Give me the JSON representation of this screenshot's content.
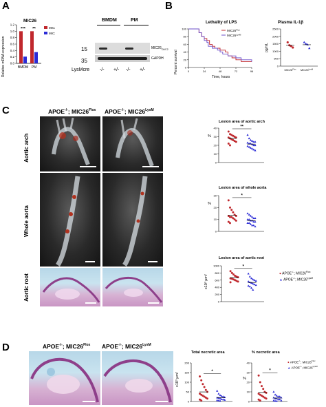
{
  "panels": {
    "A": {
      "letter": "A",
      "bar_chart": {
        "title": "MIC26",
        "ylabel": "Relative mRNA expression",
        "categories": [
          "BMDM",
          "PM"
        ],
        "legend": [
          {
            "name": "MIC26",
            "sup": "Flox",
            "color": "#c0282d"
          },
          {
            "name": "MIC26",
            "sup": "LysM",
            "color": "#2b2bd6"
          }
        ],
        "significance": [
          "***",
          "**"
        ],
        "ticks": [
          "0.0",
          "0.2",
          "0.4",
          "0.6",
          "0.8",
          "1.0",
          "1.2"
        ]
      },
      "blot": {
        "groups": [
          "BMDM",
          "PM"
        ],
        "markers": [
          "15",
          "35"
        ],
        "bands": [
          "MIC26",
          "GAPDH"
        ],
        "band_sub": "C6/C2",
        "row_label": "LysMcre",
        "lanes": [
          "-/-",
          "+/-",
          "-/-",
          "+/-"
        ]
      }
    },
    "B": {
      "letter": "B",
      "survival": {
        "title": "Lethality of LPS",
        "ylabel": "Percent survival",
        "xlabel": "Time, hours",
        "xticks": [
          "0",
          "24",
          "48",
          "72",
          "96"
        ],
        "yticks": [
          "0",
          "20",
          "40",
          "60",
          "80",
          "100"
        ],
        "legend": [
          {
            "name": "MIC26",
            "sup": "Flox",
            "color": "#c0282d"
          },
          {
            "name": "MIC26",
            "sup": "LysM",
            "color": "#6a4cc9"
          }
        ]
      },
      "il1b": {
        "title": "Plasma IL-1β",
        "ylabel": "pg/mL",
        "yticks": [
          "0",
          "500",
          "1000",
          "1500",
          "2000",
          "2500"
        ],
        "categories": [
          "MIC26Flox",
          "MIC26LysM"
        ]
      }
    },
    "C": {
      "letter": "C",
      "col_headers": [
        {
          "base": "APOE",
          "sup1": "-/-",
          "mid": "; MIC26",
          "sup2": "Flox"
        },
        {
          "base": "APOE",
          "sup1": "-/-",
          "mid": "; MIC26",
          "sup2": "LysM"
        }
      ],
      "row_labels": [
        "Aortic arch",
        "Whole aorta",
        "Aortic root"
      ],
      "plots": [
        {
          "title": "Lesion area of aortic arch",
          "ylabel": "%",
          "yticks": [
            "0",
            "10",
            "20",
            "30",
            "40"
          ],
          "sig": "**"
        },
        {
          "title": "Lesion area of whole aorta",
          "ylabel": "%",
          "yticks": [
            "0",
            "10",
            "20",
            "30"
          ],
          "sig": "*"
        },
        {
          "title": "Lesion area of aortic root",
          "ylabel": "x10³ μm²",
          "yticks": [
            "0",
            "200",
            "400",
            "600",
            "800",
            "1000"
          ],
          "sig": "*"
        }
      ],
      "legend": [
        {
          "base": "APOE",
          "sup1": "-/-",
          "mid": "; MIC26",
          "sup2": "Flox",
          "color": "#c0282d"
        },
        {
          "base": "APOE",
          "sup1": "-/-",
          "mid": "; MIC26",
          "sup2": "LysM",
          "color": "#2b2bd6"
        }
      ]
    },
    "D": {
      "letter": "D",
      "col_headers": [
        {
          "base": "APOE",
          "sup1": "-/-",
          "mid": "; MIC26",
          "sup2": "Flox"
        },
        {
          "base": "APOE",
          "sup1": "-/-",
          "mid": "; MIC26",
          "sup2": "LysM"
        }
      ],
      "plots": [
        {
          "title": "Total necrotic area",
          "ylabel": "x10³ μm²",
          "yticks": [
            "0",
            "50",
            "100",
            "150",
            "200"
          ],
          "sig": "*"
        },
        {
          "title": "% necrotic area",
          "ylabel": "%",
          "yticks": [
            "0",
            "10",
            "20",
            "30",
            "40"
          ],
          "sig": "*"
        }
      ],
      "legend": [
        {
          "base": "APOE",
          "sup1": "-/-",
          "mid": "; MIC26",
          "sup2": "Flox",
          "color": "#c0282d"
        },
        {
          "base": "APOE",
          "sup1": "-/-",
          "mid": "; MIC26",
          "sup2": "LysM",
          "color": "#2b2bd6"
        }
      ]
    }
  },
  "chart_data": [
    {
      "type": "bar",
      "title": "MIC26",
      "ylabel": "Relative mRNA expression",
      "categories": [
        "BMDM",
        "PM"
      ],
      "ylim": [
        0,
        1.2
      ],
      "series": [
        {
          "name": "MIC26Flox",
          "values": [
            1.0,
            1.0
          ]
        },
        {
          "name": "MIC26LysM",
          "values": [
            0.21,
            0.35
          ]
        }
      ]
    },
    {
      "type": "line",
      "title": "Lethality of LPS",
      "xlabel": "Time, hours",
      "ylabel": "Percent survival",
      "xlim": [
        0,
        96
      ],
      "ylim": [
        0,
        100
      ],
      "series": [
        {
          "name": "MIC26Flox",
          "x": [
            0,
            14,
            16,
            20,
            24,
            28,
            32,
            36,
            40,
            48,
            56,
            60,
            66,
            72,
            80,
            96
          ],
          "y": [
            100,
            100,
            90,
            80,
            75,
            70,
            60,
            55,
            50,
            45,
            40,
            30,
            25,
            20,
            15,
            15
          ]
        },
        {
          "name": "MIC26LysM",
          "x": [
            0,
            12,
            16,
            20,
            24,
            28,
            30,
            36,
            44,
            48,
            52,
            60,
            72,
            80,
            96
          ],
          "y": [
            100,
            100,
            90,
            80,
            70,
            65,
            55,
            50,
            45,
            40,
            35,
            30,
            25,
            20,
            15
          ]
        }
      ]
    },
    {
      "type": "scatter",
      "title": "Plasma IL-1β",
      "ylabel": "pg/mL",
      "categories": [
        "MIC26Flox",
        "MIC26LysM"
      ],
      "ylim": [
        0,
        2500
      ],
      "series": [
        {
          "name": "MIC26Flox",
          "values": [
            1600,
            1400,
            1350,
            1250
          ]
        },
        {
          "name": "MIC26LysM",
          "values": [
            1600,
            1500,
            1450,
            1200
          ]
        }
      ]
    },
    {
      "type": "scatter",
      "title": "Lesion area of aortic arch",
      "ylabel": "%",
      "ylim": [
        0,
        40
      ],
      "series": [
        {
          "name": "APOE-/-; MIC26Flox",
          "values": [
            36,
            33,
            32,
            31,
            30,
            29,
            29,
            28,
            27,
            26,
            25,
            24,
            22,
            20
          ]
        },
        {
          "name": "APOE-/-; MIC26LysM",
          "values": [
            32,
            28,
            26,
            25,
            24,
            24,
            23,
            22,
            22,
            21,
            20,
            20,
            19,
            18,
            17,
            16,
            15,
            14
          ]
        }
      ]
    },
    {
      "type": "scatter",
      "title": "Lesion area of whole aorta",
      "ylabel": "%",
      "ylim": [
        0,
        30
      ],
      "series": [
        {
          "name": "APOE-/-; MIC26Flox",
          "values": [
            26,
            20,
            18,
            16,
            14,
            13,
            13,
            12,
            12,
            11,
            10,
            9,
            8,
            7
          ]
        },
        {
          "name": "APOE-/-; MIC26LysM",
          "values": [
            15,
            14,
            13,
            12,
            11,
            11,
            10,
            10,
            9,
            9,
            8,
            8,
            7,
            7,
            6,
            5,
            5,
            4
          ]
        }
      ]
    },
    {
      "type": "scatter",
      "title": "Lesion area of aortic root",
      "ylabel": "x10³ μm²",
      "ylim": [
        0,
        1000
      ],
      "series": [
        {
          "name": "APOE-/-; MIC26Flox",
          "values": [
            850,
            800,
            760,
            720,
            700,
            680,
            650,
            640,
            620,
            600,
            580,
            560,
            540
          ]
        },
        {
          "name": "APOE-/-; MIC26LysM",
          "values": [
            780,
            700,
            650,
            620,
            600,
            580,
            560,
            540,
            520,
            500,
            480,
            460,
            440,
            420,
            380,
            330
          ]
        }
      ]
    },
    {
      "type": "scatter",
      "title": "Total necrotic area",
      "ylabel": "x10³ μm²",
      "ylim": [
        0,
        200
      ],
      "series": [
        {
          "name": "APOE-/-; MIC26Flox",
          "values": [
            130,
            110,
            90,
            75,
            60,
            50,
            40,
            35,
            30,
            25,
            20,
            15,
            10,
            5
          ]
        },
        {
          "name": "APOE-/-; MIC26LysM",
          "values": [
            55,
            40,
            32,
            28,
            25,
            22,
            20,
            18,
            15,
            12,
            10,
            8,
            6,
            5,
            3
          ]
        }
      ]
    },
    {
      "type": "scatter",
      "title": "% necrotic area",
      "ylabel": "%",
      "ylim": [
        0,
        40
      ],
      "series": [
        {
          "name": "APOE-/-; MIC26Flox",
          "values": [
            27,
            20,
            16,
            13,
            10,
            9,
            8,
            7,
            6,
            5,
            4,
            3,
            2,
            1
          ]
        },
        {
          "name": "APOE-/-; MIC26LysM",
          "values": [
            10,
            7,
            6,
            5,
            5,
            4,
            4,
            3,
            3,
            2,
            2,
            1,
            1,
            0.5,
            0.3
          ]
        }
      ]
    }
  ]
}
